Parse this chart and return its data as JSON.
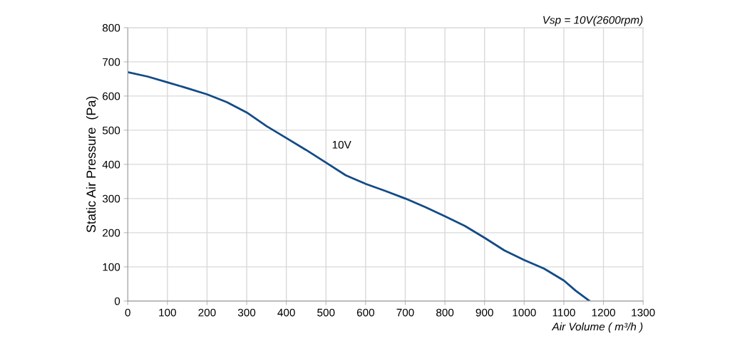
{
  "chart_data": {
    "type": "line",
    "subtitle": "Vsp = 10V(2600rpm)",
    "xlabel": "Air Volume ( m³/h )",
    "ylabel": "Static Air Pressure  (Pa)",
    "x": [
      0,
      50,
      100,
      150,
      200,
      250,
      300,
      350,
      400,
      450,
      500,
      550,
      600,
      650,
      700,
      750,
      800,
      850,
      900,
      950,
      1000,
      1050,
      1100,
      1130,
      1165
    ],
    "series": [
      {
        "name": "10V",
        "color": "#134b86",
        "values": [
          670,
          657,
          640,
          623,
          605,
          582,
          552,
          512,
          477,
          442,
          405,
          368,
          343,
          322,
          300,
          275,
          248,
          220,
          185,
          148,
          120,
          95,
          60,
          30,
          0
        ]
      }
    ],
    "xlim": [
      0,
      1300
    ],
    "ylim": [
      0,
      800
    ],
    "xticks": [
      0,
      100,
      200,
      300,
      400,
      500,
      600,
      700,
      800,
      900,
      1000,
      1100,
      1200,
      1300
    ],
    "yticks": [
      0,
      100,
      200,
      300,
      400,
      500,
      600,
      700,
      800
    ],
    "grid": true,
    "marker": "none",
    "line_style": "solid"
  }
}
